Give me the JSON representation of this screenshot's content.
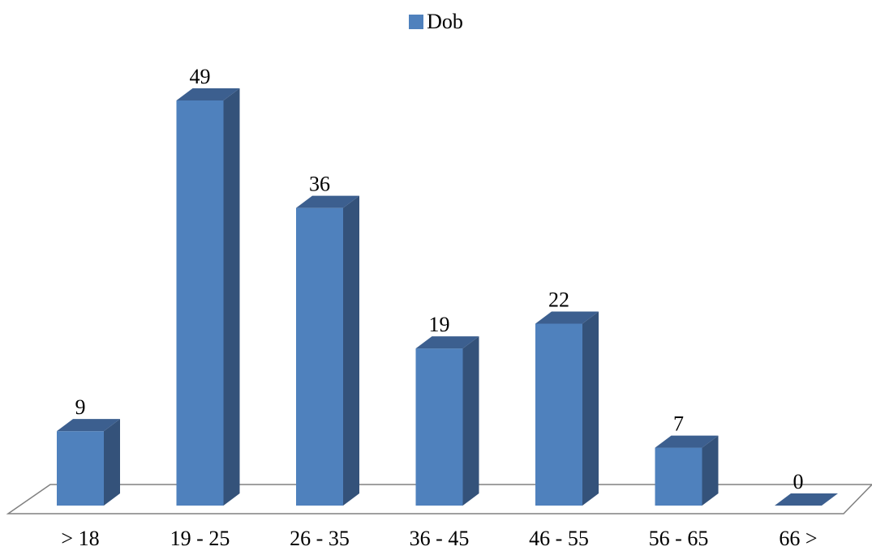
{
  "chart_data": {
    "type": "bar",
    "categories": [
      "> 18",
      "19 - 25",
      "26 - 35",
      "36 - 45",
      "46 - 55",
      "56 - 65",
      "66 >"
    ],
    "series": [
      {
        "name": "Dob",
        "values": [
          9,
          49,
          36,
          19,
          22,
          7,
          0
        ]
      }
    ],
    "ylim": [
      0,
      52
    ],
    "three_d": true,
    "legend_position": "top",
    "data_labels": true,
    "grid": false,
    "colors": {
      "front": "#4f81bd",
      "side": "#34527a",
      "top": "#3c5f8f"
    }
  }
}
